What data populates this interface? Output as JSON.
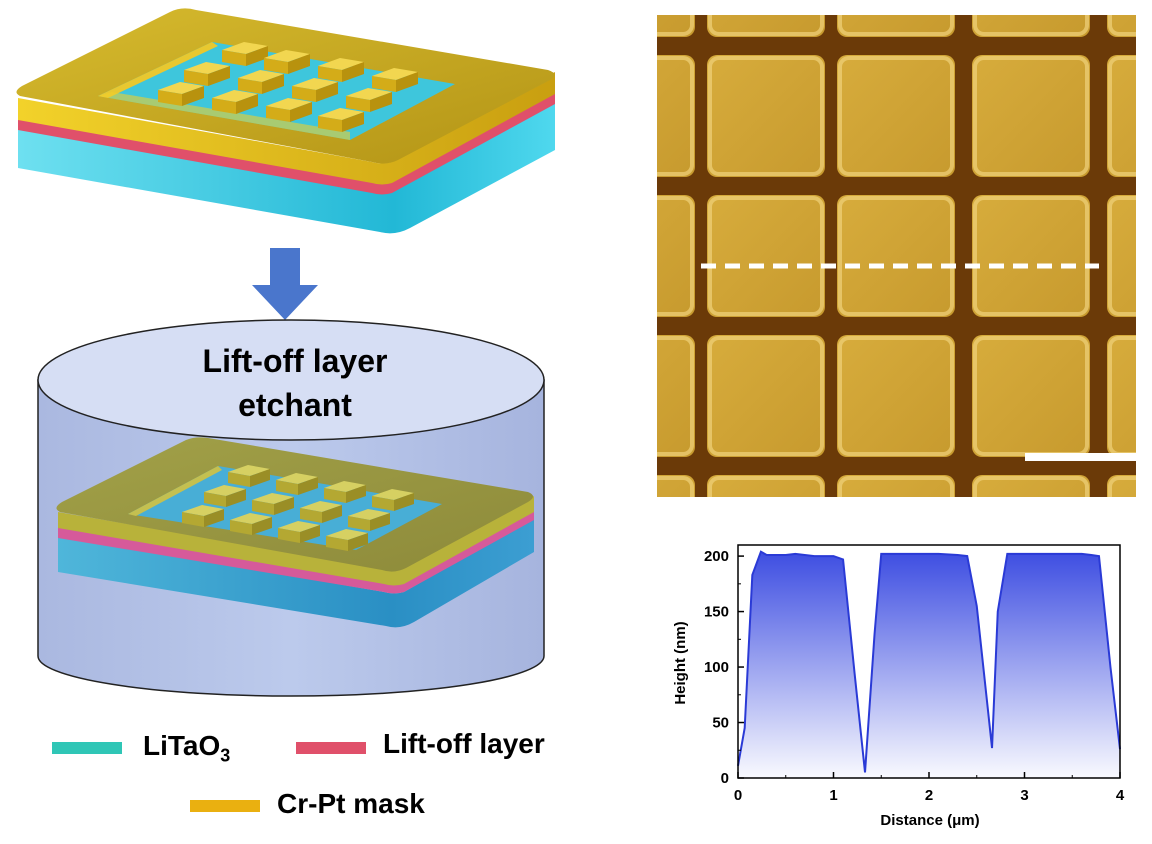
{
  "diagram": {
    "etchant_line1": "Lift-off layer",
    "etchant_line2": "etchant"
  },
  "legend": {
    "items": [
      {
        "label": "LiTaO",
        "subscript": "3",
        "color": "#2fc6b6"
      },
      {
        "label": "Lift-off layer",
        "color": "#e0506a"
      },
      {
        "label": "Cr-Pt mask",
        "color": "#eab010"
      }
    ]
  },
  "colors": {
    "mask": "#c8a81c",
    "liftoff": "#e0506a",
    "litao3": "#3cc8de",
    "arrow": "#4a76cc",
    "beaker": "#b9c6e8",
    "profile": "#2a3ad6"
  },
  "chart_data": {
    "type": "area",
    "title": "",
    "xlabel": "Distance (μm)",
    "ylabel": "Height (nm)",
    "xlim": [
      0,
      4
    ],
    "ylim": [
      0,
      210
    ],
    "xticks": [
      "0",
      "1",
      "2",
      "3",
      "4"
    ],
    "yticks": [
      "0",
      "50",
      "100",
      "150",
      "200"
    ],
    "grid": false,
    "series": [
      {
        "x": [
          0,
          0.07,
          0.15,
          0.24,
          0.3,
          0.5,
          0.6,
          0.8,
          1.0,
          1.1,
          1.22,
          1.33,
          1.43,
          1.5,
          1.7,
          1.9,
          2.1,
          2.3,
          2.4,
          2.5,
          2.6,
          2.66,
          2.72,
          2.82,
          3.0,
          3.2,
          3.4,
          3.6,
          3.7,
          3.78,
          3.9,
          4.0
        ],
        "y": [
          11,
          45,
          183,
          204,
          201,
          201,
          202,
          200,
          200,
          197,
          95,
          5,
          130,
          202,
          202,
          202,
          202,
          201,
          200,
          155,
          75,
          27,
          150,
          202,
          202,
          202,
          202,
          202,
          201,
          200,
          100,
          26
        ]
      }
    ]
  }
}
